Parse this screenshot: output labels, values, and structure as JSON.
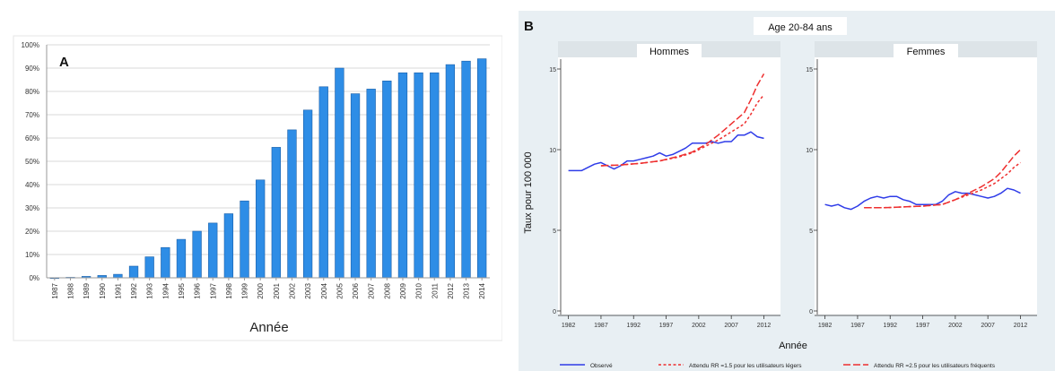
{
  "chart_data": [
    {
      "type": "bar",
      "panel_label": "A",
      "xlabel": "Année",
      "ylabel": "",
      "ylim": [
        0,
        100
      ],
      "yticks": [
        "0%",
        "10%",
        "20%",
        "30%",
        "40%",
        "50%",
        "60%",
        "70%",
        "80%",
        "90%",
        "100%"
      ],
      "categories": [
        "1987",
        "1988",
        "1989",
        "1990",
        "1991",
        "1992",
        "1993",
        "1994",
        "1995",
        "1996",
        "1997",
        "1998",
        "1999",
        "2000",
        "2001",
        "2002",
        "2003",
        "2004",
        "2005",
        "2006",
        "2007",
        "2008",
        "2009",
        "2010",
        "2011",
        "2012",
        "2013",
        "2014"
      ],
      "values": [
        0,
        0.2,
        0.6,
        1,
        1.5,
        5,
        9,
        13,
        16.5,
        20,
        23.5,
        27.5,
        33,
        42,
        56,
        63.5,
        72,
        82,
        90,
        79,
        81,
        84.5,
        88,
        88,
        88,
        91.5,
        93,
        94
      ],
      "grid": true,
      "bar_color": "#2e8de6"
    },
    {
      "type": "line",
      "panel_label": "B",
      "title": "Age 20-84 ans",
      "xlabel": "Année",
      "ylabel": "Taux pour 100 000",
      "xlim": [
        1981.5,
        2014
      ],
      "ylim": [
        0,
        15.5
      ],
      "xticks": [
        "1982",
        "1987",
        "1992",
        "1997",
        "2002",
        "2007",
        "2012"
      ],
      "yticks": [
        "0",
        "5",
        "10",
        "15"
      ],
      "legend": {
        "placement": "bottom",
        "items": [
          {
            "label": "Observé",
            "color": "#2f3ce8",
            "style": "solid"
          },
          {
            "label": "Attendu RR =1.5 pour les utilisateurs légers",
            "color": "#ee2f2f",
            "style": "dashed"
          },
          {
            "label": "Attendu RR =2.5 pour les utilisateurs fréquents",
            "color": "#ee2f2f",
            "style": "longdash"
          }
        ]
      },
      "facets": [
        {
          "title": "Hommes",
          "series": [
            {
              "name": "Observé",
              "x": [
                1982,
                1983,
                1984,
                1985,
                1986,
                1987,
                1988,
                1989,
                1990,
                1991,
                1992,
                1993,
                1994,
                1995,
                1996,
                1997,
                1998,
                1999,
                2000,
                2001,
                2002,
                2003,
                2004,
                2005,
                2006,
                2007,
                2008,
                2009,
                2010,
                2011,
                2012
              ],
              "y": [
                8.7,
                8.7,
                8.7,
                8.9,
                9.1,
                9.2,
                9.0,
                8.8,
                9.0,
                9.3,
                9.3,
                9.4,
                9.5,
                9.6,
                9.8,
                9.6,
                9.7,
                9.9,
                10.1,
                10.4,
                10.4,
                10.4,
                10.5,
                10.4,
                10.5,
                10.5,
                10.9,
                10.9,
                11.1,
                10.8,
                10.7
              ]
            },
            {
              "name": "Attendu RR =1.5 pour les utilisateurs légers",
              "x": [
                1987,
                1990,
                1993,
                1996,
                1999,
                2001,
                2003,
                2005,
                2007,
                2009,
                2010,
                2011,
                2012
              ],
              "y": [
                9.0,
                9.05,
                9.15,
                9.3,
                9.55,
                9.8,
                10.2,
                10.6,
                11.1,
                11.6,
                12.2,
                12.9,
                13.4
              ]
            },
            {
              "name": "Attendu RR =2.5 pour les utilisateurs fréquents",
              "x": [
                1987,
                1990,
                1993,
                1996,
                1999,
                2001,
                2003,
                2005,
                2007,
                2009,
                2010,
                2011,
                2012
              ],
              "y": [
                9.0,
                9.05,
                9.15,
                9.3,
                9.6,
                9.85,
                10.3,
                10.9,
                11.6,
                12.3,
                13.1,
                14.0,
                14.7
              ]
            }
          ]
        },
        {
          "title": "Femmes",
          "series": [
            {
              "name": "Observé",
              "x": [
                1982,
                1983,
                1984,
                1985,
                1986,
                1987,
                1988,
                1989,
                1990,
                1991,
                1992,
                1993,
                1994,
                1995,
                1996,
                1997,
                1998,
                1999,
                2000,
                2001,
                2002,
                2003,
                2004,
                2005,
                2006,
                2007,
                2008,
                2009,
                2010,
                2011,
                2012
              ],
              "y": [
                6.6,
                6.5,
                6.6,
                6.4,
                6.3,
                6.5,
                6.8,
                7.0,
                7.1,
                7.0,
                7.1,
                7.1,
                6.9,
                6.8,
                6.6,
                6.6,
                6.6,
                6.6,
                6.8,
                7.2,
                7.4,
                7.3,
                7.3,
                7.2,
                7.1,
                7.0,
                7.1,
                7.3,
                7.6,
                7.5,
                7.3
              ]
            },
            {
              "name": "Attendu RR =1.5 pour les utilisateurs légers",
              "x": [
                1988,
                1991,
                1994,
                1997,
                2000,
                2002,
                2004,
                2006,
                2008,
                2009,
                2010,
                2011,
                2012
              ],
              "y": [
                6.4,
                6.4,
                6.45,
                6.5,
                6.6,
                6.9,
                7.2,
                7.5,
                7.9,
                8.2,
                8.5,
                8.9,
                9.2
              ]
            },
            {
              "name": "Attendu RR =2.5 pour les utilisateurs fréquents",
              "x": [
                1988,
                1991,
                1994,
                1997,
                2000,
                2002,
                2004,
                2006,
                2008,
                2009,
                2010,
                2011,
                2012
              ],
              "y": [
                6.4,
                6.4,
                6.45,
                6.5,
                6.6,
                6.9,
                7.3,
                7.7,
                8.2,
                8.6,
                9.1,
                9.6,
                10.0
              ]
            }
          ]
        }
      ]
    }
  ]
}
